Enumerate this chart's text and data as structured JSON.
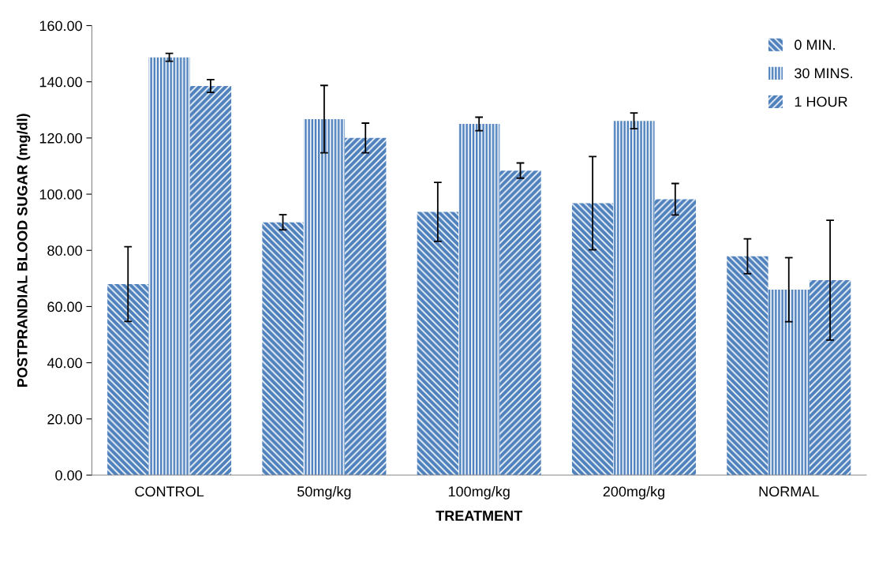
{
  "chart_data": {
    "type": "bar",
    "xlabel": "TREATMENT",
    "ylabel": "POSTPRANDIAL BLOOD SUGAR (mg/dl)",
    "categories": [
      "CONTROL",
      "50mg/kg",
      "100mg/kg",
      "200mg/kg",
      "NORMAL"
    ],
    "series": [
      {
        "name": "0 MIN.",
        "color": "#4f81bd",
        "values": [
          68,
          90,
          93.7,
          96.8,
          77.9
        ],
        "errors": [
          13.3,
          2.7,
          10.5,
          16.6,
          6.2
        ]
      },
      {
        "name": "30 MINS.",
        "color": "#4f81bd",
        "values": [
          148.7,
          126.7,
          125,
          126.1,
          66
        ],
        "errors": [
          1.4,
          12,
          2.4,
          2.8,
          11.4
        ]
      },
      {
        "name": "1 HOUR",
        "color": "#4f81bd",
        "values": [
          138.5,
          120,
          108.4,
          98.2,
          69.4
        ],
        "errors": [
          2.3,
          5.3,
          2.7,
          5.6,
          21.3
        ]
      }
    ],
    "ylim": [
      0,
      160
    ],
    "yticks": [
      {
        "value": 0,
        "label": "0.00"
      },
      {
        "value": 20,
        "label": "20.00"
      },
      {
        "value": 40,
        "label": "40.00"
      },
      {
        "value": 60,
        "label": "60.00"
      },
      {
        "value": 80,
        "label": "80.00"
      },
      {
        "value": 100,
        "label": "100.00"
      },
      {
        "value": 120,
        "label": "120.00"
      },
      {
        "value": 140,
        "label": "140.00"
      },
      {
        "value": 160,
        "label": "160.00"
      }
    ],
    "grid": false,
    "legend": "top right"
  }
}
